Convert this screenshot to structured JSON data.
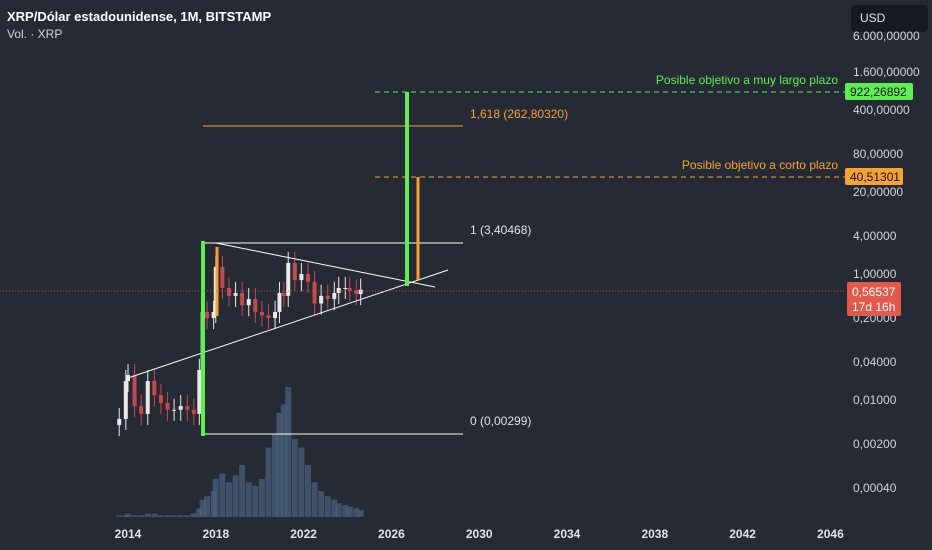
{
  "header": {
    "title": "XRP/Dólar estadounidense, 1M, BITSTAMP",
    "volume_label": "Vol. · XRP",
    "currency_button": "USD"
  },
  "chart_data": {
    "type": "candlestick",
    "scale": "log",
    "y_ticks": [
      "6.000,00000",
      "1.600,00000",
      "400,00000",
      "80,00000",
      "20,00000",
      "4,00000",
      "1,00000",
      "0,20000",
      "0,04000",
      "0,01000",
      "0,00200",
      "0,00040"
    ],
    "y_tick_values": [
      6000,
      1600,
      400,
      80,
      20,
      4,
      1,
      0.2,
      0.04,
      0.01,
      0.002,
      0.0004
    ],
    "x_ticks": [
      "2014",
      "2018",
      "2022",
      "2026",
      "2030",
      "2034",
      "2038",
      "2042",
      "2046"
    ],
    "x_tick_values": [
      2014,
      2018,
      2022,
      2026,
      2030,
      2034,
      2038,
      2042,
      2046
    ],
    "price_series": {
      "t": [
        2013.6,
        2013.9,
        2014.0,
        2014.3,
        2014.6,
        2014.9,
        2015.2,
        2015.5,
        2015.8,
        2016.1,
        2016.4,
        2016.7,
        2017.0,
        2017.25,
        2017.4,
        2017.6,
        2017.9,
        2018.0,
        2018.3,
        2018.6,
        2018.9,
        2019.2,
        2019.5,
        2019.8,
        2020.1,
        2020.4,
        2020.7,
        2020.9,
        2021.1,
        2021.3,
        2021.6,
        2021.9,
        2022.2,
        2022.5,
        2022.8,
        2023.1,
        2023.4,
        2023.6,
        2023.9,
        2024.1,
        2024.4,
        2024.6
      ],
      "close": [
        0.005,
        0.02,
        0.025,
        0.008,
        0.006,
        0.02,
        0.012,
        0.009,
        0.007,
        0.007,
        0.008,
        0.007,
        0.006,
        0.03,
        0.25,
        0.2,
        0.25,
        1.3,
        0.6,
        0.45,
        0.5,
        0.32,
        0.4,
        0.25,
        0.22,
        0.2,
        0.25,
        0.5,
        0.45,
        1.5,
        0.8,
        1.0,
        0.75,
        0.34,
        0.45,
        0.4,
        0.5,
        0.6,
        0.6,
        0.55,
        0.48,
        0.565
      ]
    },
    "volume_series": [
      1,
      1,
      2,
      1,
      1,
      2,
      2,
      1,
      1,
      1,
      1,
      1,
      2,
      5,
      10,
      12,
      15,
      22,
      25,
      20,
      24,
      30,
      20,
      18,
      22,
      40,
      48,
      60,
      65,
      75,
      45,
      40,
      30,
      20,
      15,
      12,
      10,
      8,
      7,
      6,
      5,
      4
    ],
    "last_price": "0,56537",
    "countdown": "17d 16h",
    "annotations": {
      "fib_1": "1 (3,40468)",
      "fib_0": "0 (0,00299)",
      "fib_1618": "1,618 (262,80320)",
      "long_target_text": "Posible objetivo a muy largo plazo",
      "long_target_price": "922,26892",
      "short_target_text": "Posible objetivo a corto plazo",
      "short_target_price": "40,51301"
    },
    "colors": {
      "up": "#e9e9ea",
      "down": "#c44a4f",
      "green": "#5bef4f",
      "orange": "#f7a233",
      "last": "#e05a4e",
      "volume": "#4a6480"
    }
  }
}
